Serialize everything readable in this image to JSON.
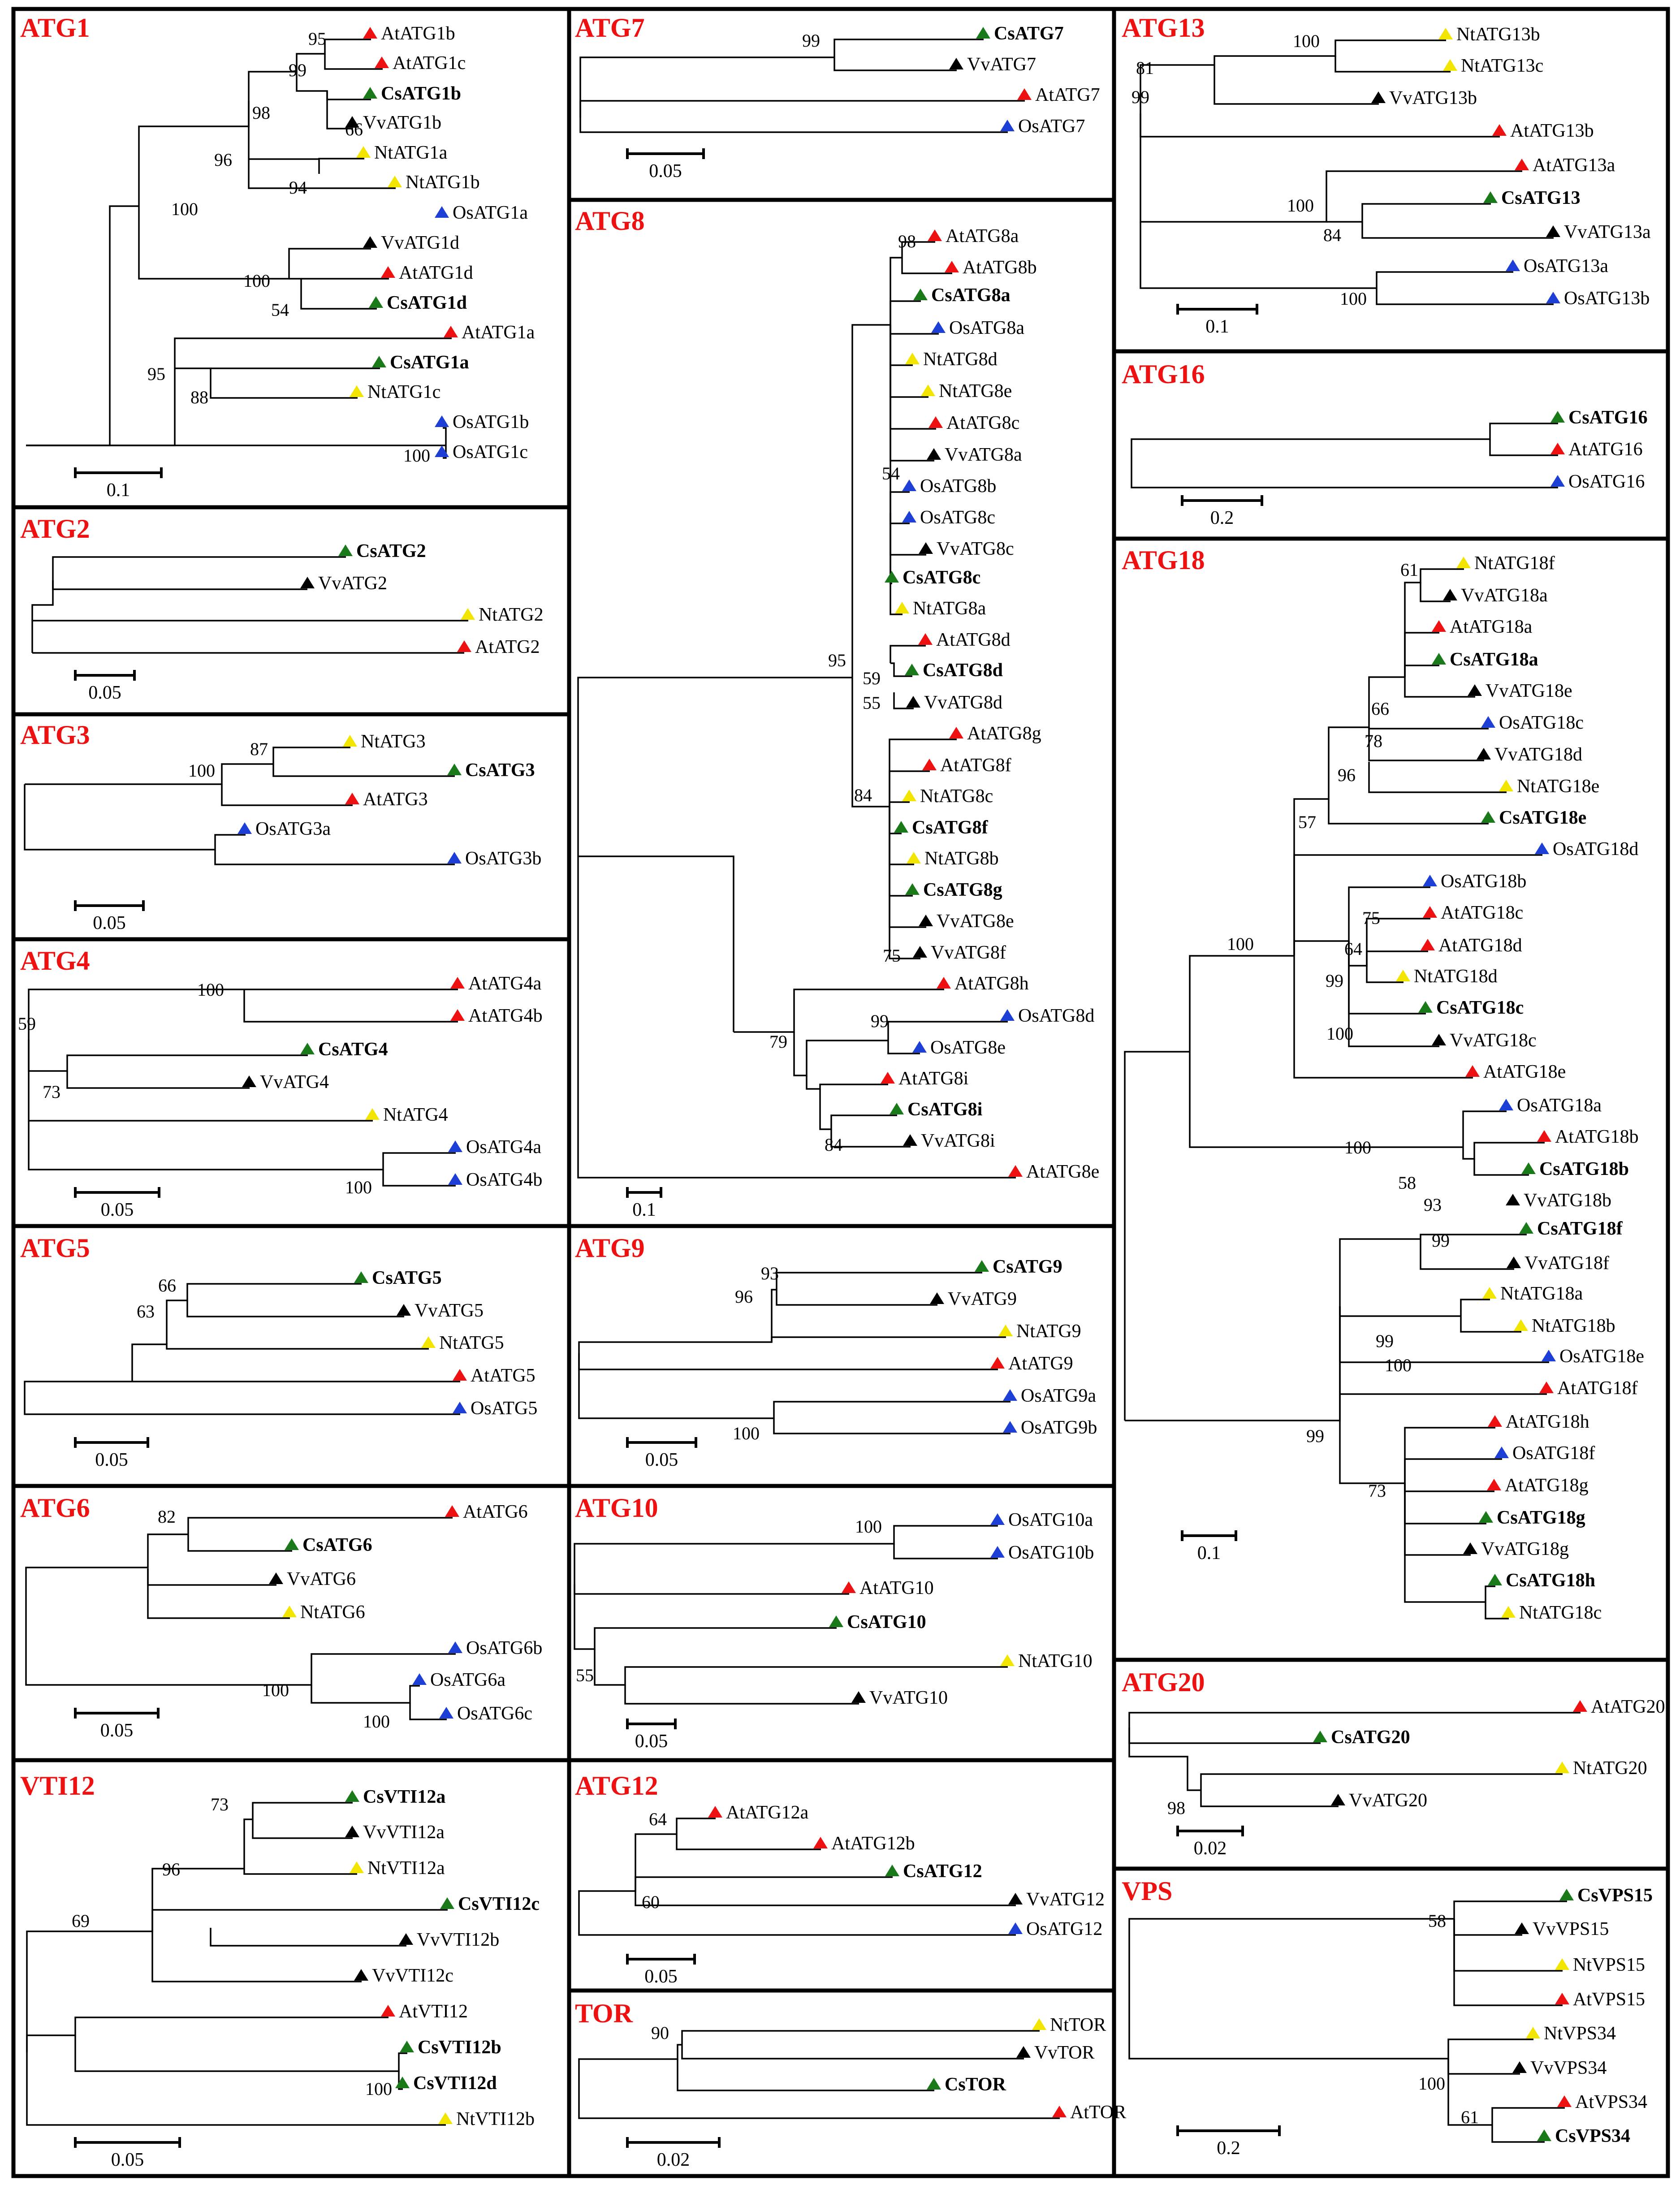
{
  "figure": {
    "description": "Phylogenetic trees of autophagy-related genes across species",
    "colors": {
      "At": "#ee1111",
      "Cs": "#1a7a1a",
      "Vv": "#000000",
      "Nt": "#f2e600",
      "Os": "#1e3fd6",
      "title": "#ee1111"
    }
  },
  "panels": [
    {
      "id": "ATG1",
      "title": "ATG1",
      "scale": "0.1",
      "leaves": [
        "AtATG1b",
        "AtATG1c",
        "CsATG1b",
        "VvATG1b",
        "NtATG1a",
        "NtATG1b",
        "OsATG1a",
        "VvATG1d",
        "AtATG1d",
        "CsATG1d",
        "AtATG1a",
        "CsATG1a",
        "NtATG1c",
        "OsATG1b",
        "OsATG1c"
      ],
      "bootstraps": [
        "95",
        "99",
        "66",
        "98",
        "94",
        "96",
        "100",
        "100",
        "54",
        "95",
        "88",
        "100"
      ]
    },
    {
      "id": "ATG2",
      "title": "ATG2",
      "scale": "0.05",
      "leaves": [
        "CsATG2",
        "VvATG2",
        "NtATG2",
        "AtATG2"
      ],
      "bootstraps": []
    },
    {
      "id": "ATG3",
      "title": "ATG3",
      "scale": "0.05",
      "leaves": [
        "NtATG3",
        "CsATG3",
        "AtATG3",
        "OsATG3a",
        "OsATG3b"
      ],
      "bootstraps": [
        "87",
        "100"
      ]
    },
    {
      "id": "ATG4",
      "title": "ATG4",
      "scale": "0.05",
      "leaves": [
        "AtATG4a",
        "AtATG4b",
        "CsATG4",
        "VvATG4",
        "NtATG4",
        "OsATG4a",
        "OsATG4b"
      ],
      "bootstraps": [
        "100",
        "59",
        "73",
        "100"
      ]
    },
    {
      "id": "ATG5",
      "title": "ATG5",
      "scale": "0.05",
      "leaves": [
        "CsATG5",
        "VvATG5",
        "NtATG5",
        "AtATG5",
        "OsATG5"
      ],
      "bootstraps": [
        "66",
        "63"
      ]
    },
    {
      "id": "ATG6",
      "title": "ATG6",
      "scale": "0.05",
      "leaves": [
        "AtATG6",
        "CsATG6",
        "VvATG6",
        "NtATG6",
        "OsATG6b",
        "OsATG6a",
        "OsATG6c"
      ],
      "bootstraps": [
        "82",
        "100",
        "100"
      ]
    },
    {
      "id": "VTI12",
      "title": "VTI12",
      "scale": "0.05",
      "leaves": [
        "CsVTI12a",
        "VvVTI12a",
        "NtVTI12a",
        "CsVTI12c",
        "VvVTI12b",
        "VvVTI12c",
        "AtVTI12",
        "CsVTI12b",
        "CsVTI12d",
        "NtVTI12b"
      ],
      "bootstraps": [
        "73",
        "96",
        "69",
        "100"
      ]
    },
    {
      "id": "ATG7",
      "title": "ATG7",
      "scale": "0.05",
      "leaves": [
        "CsATG7",
        "VvATG7",
        "AtATG7",
        "OsATG7"
      ],
      "bootstraps": [
        "99"
      ]
    },
    {
      "id": "ATG8",
      "title": "ATG8",
      "scale": "0.1",
      "leaves": [
        "AtATG8a",
        "AtATG8b",
        "CsATG8a",
        "OsATG8a",
        "NtATG8d",
        "NtATG8e",
        "AtATG8c",
        "VvATG8a",
        "OsATG8b",
        "OsATG8c",
        "VvATG8c",
        "CsATG8c",
        "NtATG8a",
        "AtATG8d",
        "CsATG8d",
        "VvATG8d",
        "AtATG8g",
        "AtATG8f",
        "NtATG8c",
        "CsATG8f",
        "NtATG8b",
        "CsATG8g",
        "VvATG8e",
        "VvATG8f",
        "AtATG8h",
        "OsATG8d",
        "OsATG8e",
        "AtATG8i",
        "CsATG8i",
        "VvATG8i",
        "AtATG8e"
      ],
      "bootstraps": [
        "98",
        "54",
        "95",
        "59",
        "55",
        "84",
        "75",
        "99",
        "79",
        "84"
      ]
    },
    {
      "id": "ATG9",
      "title": "ATG9",
      "scale": "0.05",
      "leaves": [
        "CsATG9",
        "VvATG9",
        "NtATG9",
        "AtATG9",
        "OsATG9a",
        "OsATG9b"
      ],
      "bootstraps": [
        "93",
        "96",
        "100"
      ]
    },
    {
      "id": "ATG10",
      "title": "ATG10",
      "scale": "0.05",
      "leaves": [
        "OsATG10a",
        "OsATG10b",
        "AtATG10",
        "CsATG10",
        "NtATG10",
        "VvATG10"
      ],
      "bootstraps": [
        "100",
        "55"
      ]
    },
    {
      "id": "ATG12",
      "title": "ATG12",
      "scale": "0.05",
      "leaves": [
        "AtATG12a",
        "AtATG12b",
        "CsATG12",
        "VvATG12",
        "OsATG12"
      ],
      "bootstraps": [
        "64",
        "60"
      ]
    },
    {
      "id": "TOR",
      "title": "TOR",
      "scale": "0.02",
      "leaves": [
        "NtTOR",
        "VvTOR",
        "CsTOR",
        "AtTOR"
      ],
      "bootstraps": [
        "90"
      ]
    },
    {
      "id": "ATG13",
      "title": "ATG13",
      "scale": "0.1",
      "leaves": [
        "NtATG13b",
        "NtATG13c",
        "VvATG13b",
        "AtATG13b",
        "AtATG13a",
        "CsATG13",
        "VvATG13a",
        "OsATG13a",
        "OsATG13b"
      ],
      "bootstraps": [
        "100",
        "81",
        "99",
        "100",
        "84",
        "100"
      ]
    },
    {
      "id": "ATG16",
      "title": "ATG16",
      "scale": "0.2",
      "leaves": [
        "CsATG16",
        "AtATG16",
        "OsATG16"
      ],
      "bootstraps": []
    },
    {
      "id": "ATG18",
      "title": "ATG18",
      "scale": "0.1",
      "leaves": [
        "NtATG18f",
        "VvATG18a",
        "AtATG18a",
        "CsATG18a",
        "VvATG18e",
        "OsATG18c",
        "VvATG18d",
        "NtATG18e",
        "CsATG18e",
        "OsATG18d",
        "OsATG18b",
        "AtATG18c",
        "AtATG18d",
        "NtATG18d",
        "CsATG18c",
        "VvATG18c",
        "AtATG18e",
        "OsATG18a",
        "AtATG18b",
        "CsATG18b",
        "VvATG18b",
        "CsATG18f",
        "VvATG18f",
        "NtATG18a",
        "NtATG18b",
        "OsATG18e",
        "AtATG18f",
        "AtATG18h",
        "OsATG18f",
        "AtATG18g",
        "CsATG18g",
        "VvATG18g",
        "CsATG18h",
        "NtATG18c"
      ],
      "bootstraps": [
        "61",
        "66",
        "78",
        "96",
        "57",
        "100",
        "75",
        "64",
        "99",
        "100",
        "100",
        "58",
        "93",
        "99",
        "99",
        "100",
        "99",
        "73"
      ]
    },
    {
      "id": "ATG20",
      "title": "ATG20",
      "scale": "0.02",
      "leaves": [
        "AtATG20",
        "CsATG20",
        "NtATG20",
        "VvATG20"
      ],
      "bootstraps": [
        "98"
      ]
    },
    {
      "id": "VPS",
      "title": "VPS",
      "scale": "0.2",
      "leaves": [
        "CsVPS15",
        "VvVPS15",
        "NtVPS15",
        "AtVPS15",
        "NtVPS34",
        "VvVPS34",
        "AtVPS34",
        "CsVPS34"
      ],
      "bootstraps": [
        "58",
        "100",
        "61"
      ]
    }
  ]
}
